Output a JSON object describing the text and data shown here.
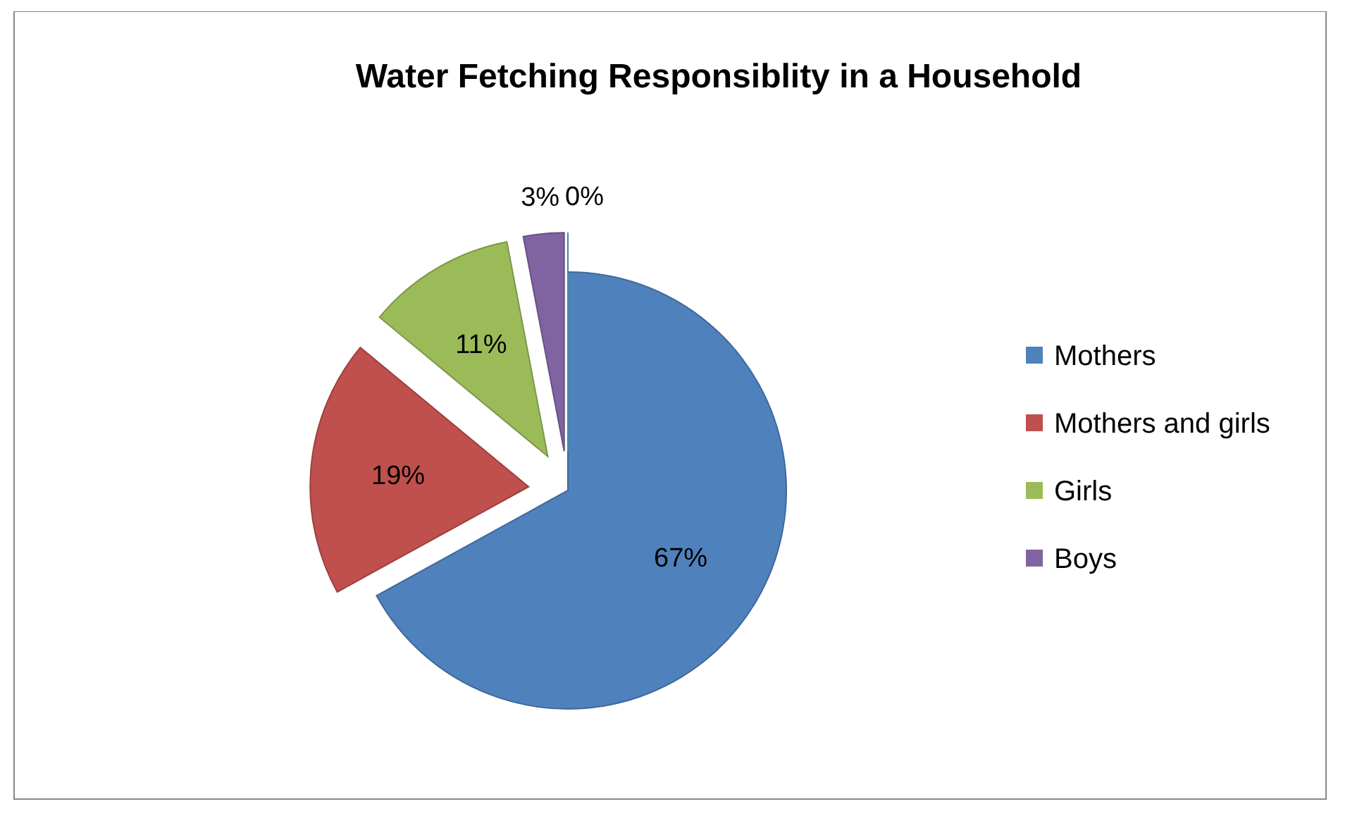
{
  "chart_data": {
    "type": "pie",
    "title": "Water Fetching Responsiblity in a Household",
    "categories": [
      "Mothers",
      "Mothers and girls",
      "Girls",
      "Boys",
      null
    ],
    "values": [
      67,
      19,
      11,
      3,
      0
    ],
    "colors": [
      "#4f81bd",
      "#c0504d",
      "#9bbb59",
      "#8064a2",
      "#4bacc6"
    ],
    "value_labels": [
      "67%",
      "19%",
      "11%",
      "3%",
      "0%"
    ],
    "legend": "right"
  }
}
